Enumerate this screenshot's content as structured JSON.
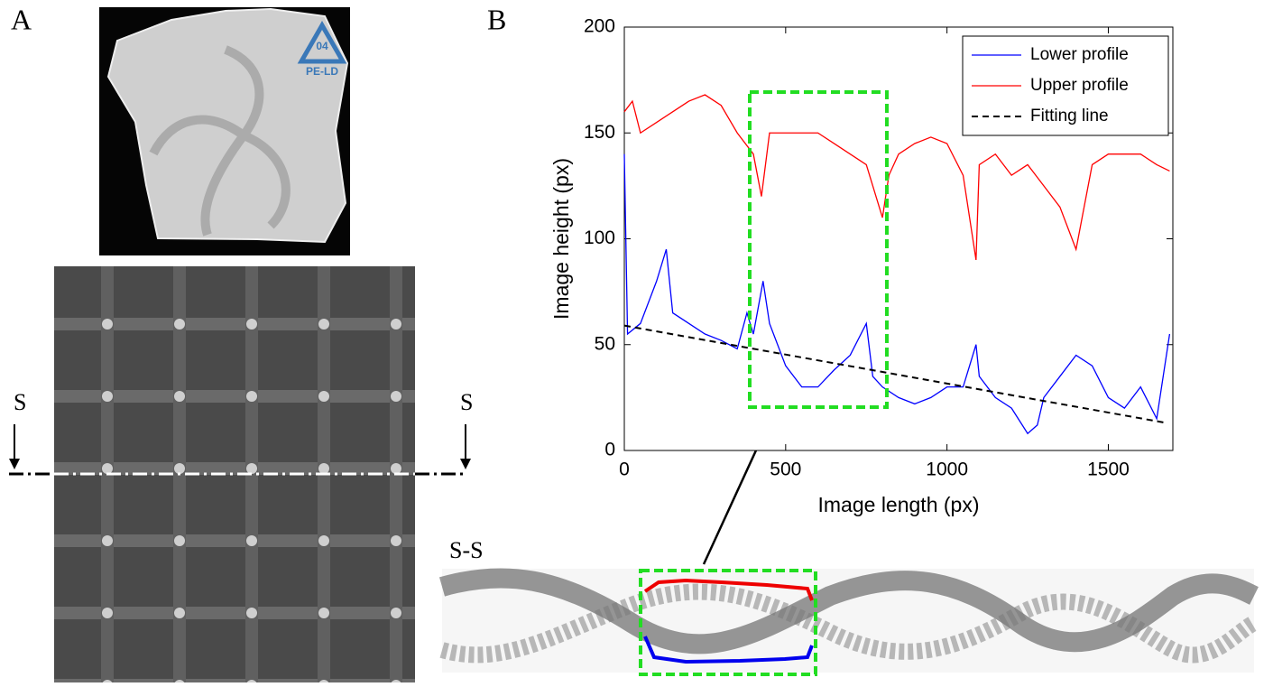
{
  "panels": {
    "a": "A",
    "b": "B",
    "s_left": "S",
    "s_right": "S",
    "section": "S-S",
    "logo_number": "04",
    "logo_text": "PE-LD"
  },
  "chart_data": {
    "type": "line",
    "xlabel": "Image length (px)",
    "ylabel": "Image height (px)",
    "xlim": [
      0,
      1700
    ],
    "ylim": [
      0,
      200
    ],
    "xticks": [
      0,
      500,
      1000,
      1500
    ],
    "yticks": [
      0,
      50,
      100,
      150,
      200
    ],
    "legend": "top-right",
    "series": [
      {
        "name": "Lower profile",
        "color": "#0000ff",
        "style": "solid",
        "x": [
          0,
          10,
          50,
          100,
          130,
          150,
          200,
          250,
          300,
          350,
          380,
          400,
          430,
          450,
          500,
          550,
          600,
          650,
          700,
          750,
          770,
          800,
          850,
          900,
          950,
          1000,
          1050,
          1090,
          1100,
          1150,
          1200,
          1250,
          1280,
          1300,
          1350,
          1400,
          1450,
          1500,
          1550,
          1600,
          1650,
          1690
        ],
        "values": [
          140,
          55,
          60,
          80,
          95,
          65,
          60,
          55,
          52,
          48,
          65,
          55,
          80,
          60,
          40,
          30,
          30,
          38,
          45,
          60,
          35,
          30,
          25,
          22,
          25,
          30,
          30,
          50,
          35,
          25,
          20,
          8,
          12,
          25,
          35,
          45,
          40,
          25,
          20,
          30,
          15,
          55
        ]
      },
      {
        "name": "Upper profile",
        "color": "#ff0000",
        "style": "solid",
        "x": [
          0,
          25,
          50,
          100,
          150,
          200,
          250,
          300,
          350,
          400,
          425,
          450,
          500,
          550,
          600,
          650,
          700,
          750,
          800,
          820,
          850,
          900,
          950,
          1000,
          1050,
          1090,
          1100,
          1150,
          1200,
          1250,
          1300,
          1350,
          1400,
          1450,
          1500,
          1550,
          1600,
          1650,
          1690
        ],
        "values": [
          160,
          165,
          150,
          155,
          160,
          165,
          168,
          163,
          150,
          140,
          120,
          150,
          150,
          150,
          150,
          145,
          140,
          135,
          110,
          130,
          140,
          145,
          148,
          145,
          130,
          90,
          135,
          140,
          130,
          135,
          125,
          115,
          95,
          135,
          140,
          140,
          140,
          135,
          132
        ]
      },
      {
        "name": "Fitting line",
        "color": "#000000",
        "style": "dashed",
        "x": [
          0,
          1680
        ],
        "values": [
          59,
          13
        ]
      }
    ]
  }
}
